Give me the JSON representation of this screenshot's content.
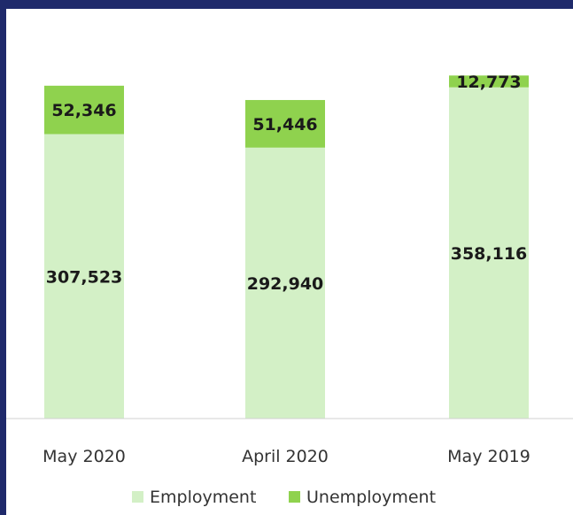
{
  "chart_data": {
    "type": "bar",
    "stacked": true,
    "categories": [
      "May 2020",
      "April  2020",
      "May 2019"
    ],
    "series": [
      {
        "name": "Employment",
        "values": [
          307523,
          292940,
          358116
        ],
        "color": "#d3f0c6"
      },
      {
        "name": "Unemployment",
        "values": [
          52346,
          51446,
          12773
        ],
        "color": "#8fd24e"
      }
    ],
    "value_labels": [
      [
        "307,523",
        "292,940",
        "358,116"
      ],
      [
        "52,346",
        "51,446",
        "12,773"
      ]
    ],
    "ylim": [
      0,
      420000
    ],
    "grid": false,
    "legend": "bottom"
  }
}
